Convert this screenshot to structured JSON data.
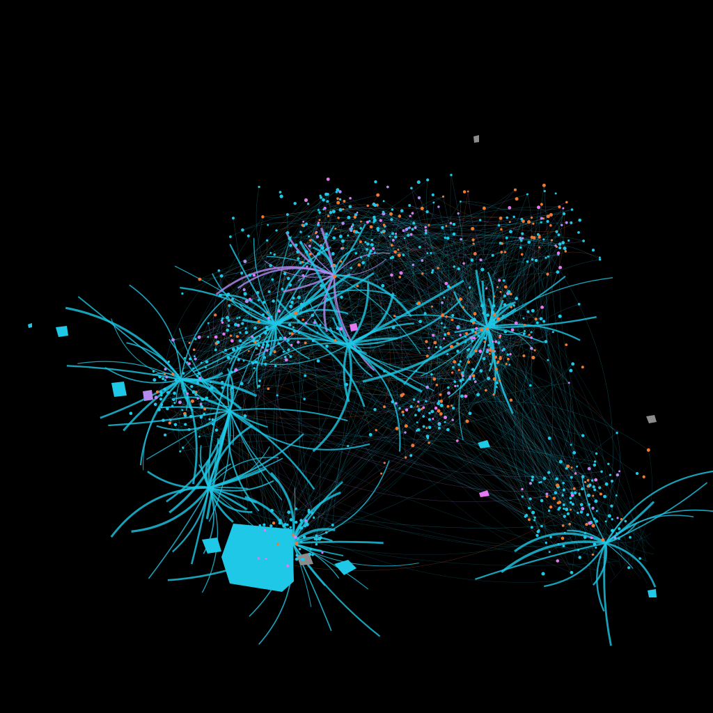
{
  "background_color": "#000000",
  "palette": {
    "cyan": "#1ec8e6",
    "violet": "#b48cf0",
    "orange": "#f07832",
    "pink": "#e678f0",
    "gray": "#8c8c8c",
    "green": "#3cb43c"
  },
  "graph": {
    "type": "force-directed network",
    "edge_style": "curved, thin, semi-transparent",
    "node_style": "small filled circles"
  }
}
